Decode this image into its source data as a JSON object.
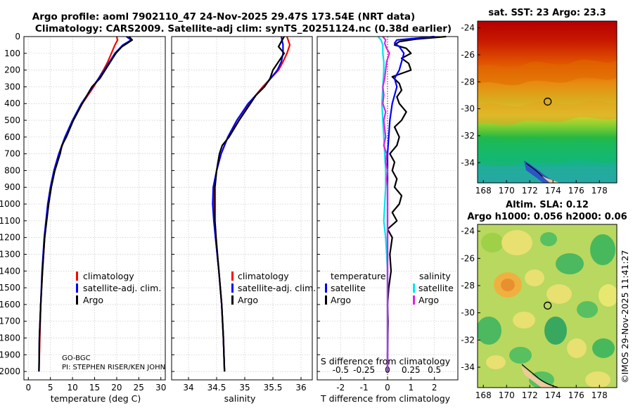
{
  "title": {
    "line1": "Argo profile: aoml 7902110_47 24-Nov-2025 29.47S 173.54E (NRT data)",
    "line2": "Climatology: CARS2009. Satellite-adj clim: synTS_20251124.nc (0.38d earlier)"
  },
  "watermark": "©IMOS 29-Nov-2025 11:41:27",
  "chart_data": [
    {
      "id": "temperature",
      "type": "line",
      "xlabel": "temperature (deg C)",
      "ylabel": "",
      "xlim": [
        -1,
        31
      ],
      "ylim": [
        2050,
        0
      ],
      "xticks": [
        0,
        5,
        10,
        15,
        20,
        25,
        30
      ],
      "yticks": [
        0,
        100,
        200,
        300,
        400,
        500,
        600,
        700,
        800,
        900,
        1000,
        1100,
        1200,
        1300,
        1400,
        1500,
        1600,
        1700,
        1800,
        1900,
        2000
      ],
      "grid": true,
      "legend": {
        "placement": "lower-right",
        "entries": [
          "climatology",
          "satellite-adj. clim.",
          "Argo"
        ]
      },
      "annotation": [
        "GO-BGC",
        "PI: STEPHEN RISER/KEN JOHN"
      ],
      "series": [
        {
          "name": "climatology",
          "color": "#ff0000",
          "depth": [
            0,
            20,
            50,
            100,
            150,
            200,
            300,
            400,
            500,
            600,
            700,
            800,
            900,
            1000,
            1200,
            1400,
            1600,
            1800,
            2000
          ],
          "values": [
            20.0,
            20.2,
            19.6,
            18.8,
            18.0,
            17.0,
            14.8,
            12.2,
            10.2,
            8.4,
            7.0,
            5.9,
            5.1,
            4.5,
            3.7,
            3.2,
            2.8,
            2.6,
            2.4
          ]
        },
        {
          "name": "satellite-adj. clim.",
          "color": "#0000ff",
          "depth": [
            0,
            20,
            50,
            100,
            150,
            200,
            300,
            400,
            500,
            600,
            700,
            800,
            900,
            1000,
            1200,
            1400,
            1600,
            1800,
            2000
          ],
          "values": [
            22.2,
            23.3,
            21.4,
            19.6,
            18.4,
            17.2,
            14.6,
            12.0,
            10.0,
            8.3,
            6.9,
            5.8,
            5.0,
            4.4,
            3.6,
            3.1,
            2.8,
            2.5,
            2.4
          ]
        },
        {
          "name": "Argo",
          "color": "#000000",
          "depth": [
            0,
            20,
            40,
            60,
            100,
            150,
            200,
            250,
            300,
            400,
            500,
            600,
            650,
            700,
            800,
            900,
            1000,
            1200,
            1400,
            1600,
            1800,
            2000
          ],
          "values": [
            22.8,
            23.5,
            22.4,
            21.2,
            19.8,
            18.6,
            17.4,
            16.2,
            14.4,
            12.2,
            10.2,
            8.6,
            7.6,
            7.2,
            6.0,
            5.2,
            4.6,
            3.7,
            3.2,
            2.8,
            2.5,
            2.4
          ]
        }
      ]
    },
    {
      "id": "salinity",
      "type": "line",
      "xlabel": "salinity",
      "xlim": [
        33.7,
        36.2
      ],
      "ylim": [
        2050,
        0
      ],
      "xticks": [
        34,
        34.5,
        35,
        35.5,
        36
      ],
      "grid": true,
      "legend": {
        "placement": "lower-right",
        "entries": [
          "climatology",
          "satellite-adj. clim.",
          "Argo"
        ]
      },
      "series": [
        {
          "name": "climatology",
          "color": "#ff0000",
          "depth": [
            0,
            50,
            100,
            150,
            200,
            300,
            400,
            500,
            600,
            700,
            800,
            900,
            1000,
            1100,
            1200,
            1400,
            1600,
            1800,
            2000
          ],
          "values": [
            35.75,
            35.8,
            35.75,
            35.68,
            35.6,
            35.32,
            35.07,
            34.86,
            34.7,
            34.58,
            34.5,
            34.46,
            34.45,
            34.46,
            34.48,
            34.54,
            34.59,
            34.62,
            34.64
          ]
        },
        {
          "name": "satellite-adj. clim.",
          "color": "#0000ff",
          "depth": [
            0,
            50,
            100,
            150,
            200,
            300,
            400,
            500,
            600,
            700,
            800,
            900,
            1000,
            1100,
            1200,
            1400,
            1600,
            1800,
            2000
          ],
          "values": [
            35.65,
            35.68,
            35.68,
            35.65,
            35.58,
            35.34,
            35.06,
            34.86,
            34.7,
            34.58,
            34.5,
            34.44,
            34.43,
            34.45,
            34.48,
            34.54,
            34.59,
            34.62,
            34.64
          ]
        },
        {
          "name": "Argo",
          "color": "#000000",
          "depth": [
            0,
            30,
            60,
            100,
            150,
            200,
            250,
            300,
            350,
            400,
            500,
            600,
            650,
            700,
            800,
            900,
            1000,
            1100,
            1200,
            1400,
            1600,
            1800,
            2000
          ],
          "values": [
            35.7,
            35.65,
            35.6,
            35.7,
            35.6,
            35.5,
            35.45,
            35.35,
            35.2,
            35.1,
            34.9,
            34.72,
            34.6,
            34.55,
            34.5,
            34.47,
            34.47,
            34.47,
            34.49,
            34.54,
            34.59,
            34.62,
            34.64
          ]
        }
      ]
    },
    {
      "id": "difference",
      "type": "line",
      "xlabel": "T difference from climatology",
      "xlabel2": "S difference from climatology",
      "xlim": [
        -3,
        3
      ],
      "ylim": [
        2050,
        0
      ],
      "xticks": [
        -2,
        -1,
        0,
        1,
        2
      ],
      "xticks_S": [
        -0.5,
        -0.25,
        0,
        0.25,
        0.5
      ],
      "xtick_labels_S": [
        "-0.5",
        "-0.25",
        "0",
        "0.25",
        "0.5"
      ],
      "grid": true,
      "legend": {
        "placement": "lower-left/lower-right",
        "groups": [
          {
            "title": "temperature",
            "entries": [
              "satellite",
              "Argo"
            ],
            "colors": [
              "#0000ff",
              "#000000"
            ]
          },
          {
            "title": "salinity",
            "entries": [
              "satellite",
              "Argo"
            ],
            "colors": [
              "#00e5ee",
              "#e020e0"
            ]
          }
        ]
      },
      "series": [
        {
          "name": "T Argo",
          "color": "#000000",
          "depth": [
            0,
            15,
            30,
            50,
            70,
            100,
            130,
            160,
            200,
            240,
            280,
            320,
            360,
            400,
            450,
            500,
            540,
            600,
            650,
            700,
            750,
            800,
            850,
            900,
            950,
            1000,
            1050,
            1100,
            1150,
            1200,
            1300,
            1400,
            1500,
            1600,
            1700,
            1800,
            1900,
            2000
          ],
          "values": [
            2.5,
            1.2,
            0.5,
            0.3,
            0.8,
            1.0,
            0.6,
            0.9,
            1.0,
            0.2,
            0.5,
            0.6,
            0.4,
            0.5,
            0.8,
            0.6,
            0.3,
            0.5,
            0.4,
            0.1,
            0.3,
            0.2,
            0.4,
            0.3,
            0.6,
            0.5,
            0.2,
            0.4,
            0.0,
            0.2,
            0.1,
            0.15,
            0.05,
            0.0,
            0.02,
            0.01,
            0.0,
            0.0
          ]
        },
        {
          "name": "T satellite",
          "color": "#0000ff",
          "depth": [
            0,
            20,
            40,
            60,
            100,
            150,
            200,
            250,
            300,
            350,
            400,
            500,
            600,
            700,
            800,
            900,
            1000,
            1200,
            1400,
            1600,
            1800,
            2000
          ],
          "values": [
            2.0,
            0.4,
            0.3,
            0.5,
            0.7,
            0.6,
            0.5,
            0.3,
            0.4,
            0.3,
            0.2,
            0.1,
            0.05,
            0.0,
            0.0,
            0.0,
            0.0,
            0.0,
            0.0,
            0.0,
            0.0,
            0.0
          ]
        },
        {
          "name": "S satellite",
          "color": "#00e5ee",
          "depth": [
            0,
            20,
            50,
            100,
            150,
            200,
            300,
            400,
            500,
            600,
            700,
            800,
            900,
            1000,
            1100,
            1200,
            1300,
            1400,
            1600,
            1800,
            2000
          ],
          "values": [
            -0.1,
            -0.07,
            -0.05,
            -0.05,
            -0.04,
            -0.04,
            -0.05,
            -0.06,
            -0.05,
            -0.04,
            -0.03,
            -0.02,
            -0.02,
            -0.03,
            -0.04,
            -0.02,
            -0.01,
            0.0,
            0.0,
            0.0,
            0.0
          ]
        },
        {
          "name": "S Argo",
          "color": "#e020e0",
          "depth": [
            0,
            20,
            40,
            70,
            100,
            150,
            200,
            250,
            300,
            350,
            400,
            450,
            500,
            550,
            600,
            650,
            700,
            750,
            800,
            850,
            900,
            1000,
            1200,
            1400,
            1600,
            1800,
            2000
          ],
          "values": [
            -0.05,
            -0.02,
            -0.03,
            -0.01,
            0.02,
            -0.01,
            -0.02,
            -0.03,
            -0.05,
            -0.04,
            -0.05,
            -0.02,
            -0.04,
            -0.03,
            -0.02,
            -0.04,
            -0.01,
            -0.02,
            0.0,
            -0.01,
            0.0,
            0.0,
            0.0,
            0.0,
            0.0,
            0.0,
            0.0
          ]
        }
      ]
    },
    {
      "id": "sst_map",
      "type": "heatmap",
      "title": "sat. SST: 23 Argo: 23.3",
      "xlim": [
        167.5,
        179.5
      ],
      "ylim": [
        -35.5,
        -23.5
      ],
      "xticks": [
        168,
        170,
        172,
        174,
        176,
        178
      ],
      "yticks": [
        -24,
        -26,
        -28,
        -30,
        -32,
        -34
      ],
      "marker": {
        "lon": 173.54,
        "lat": -29.47
      }
    },
    {
      "id": "sla_map",
      "type": "heatmap",
      "title": "Altim. SLA: 0.12",
      "subtitle": "Argo h1000: 0.056 h2000: 0.06",
      "xlim": [
        167.5,
        179.5
      ],
      "ylim": [
        -35.5,
        -23.5
      ],
      "xticks": [
        168,
        170,
        172,
        174,
        176,
        178
      ],
      "yticks": [
        -24,
        -26,
        -28,
        -30,
        -32,
        -34
      ],
      "marker": {
        "lon": 173.54,
        "lat": -29.47
      }
    }
  ]
}
